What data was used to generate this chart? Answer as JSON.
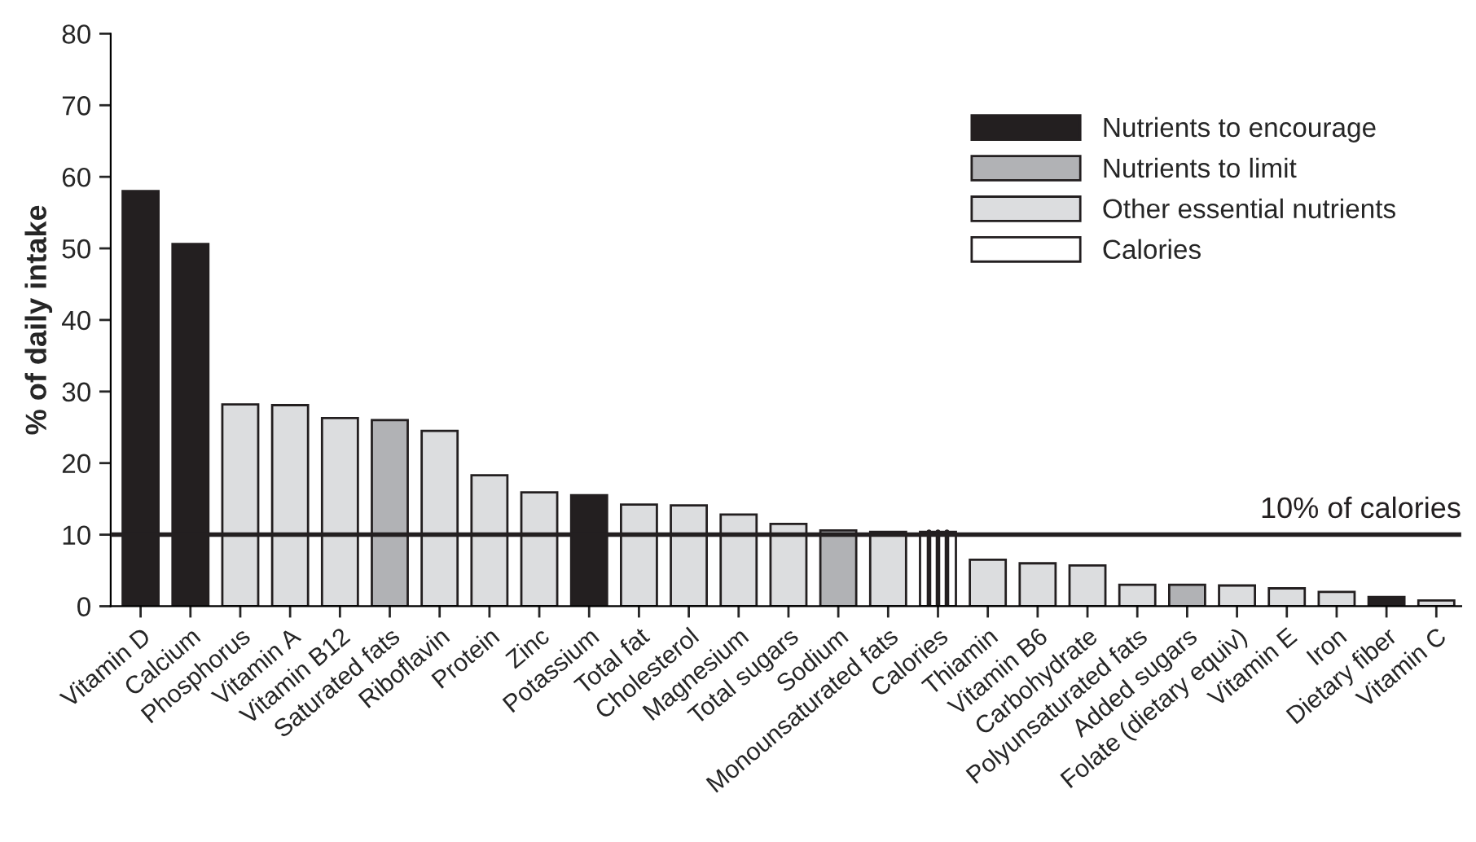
{
  "chart_data": {
    "type": "bar",
    "ylabel": "% of daily intake",
    "categories": [
      "Vitamin D",
      "Calcium",
      "Phosphorus",
      "Vitamin A",
      "Vitamin B12",
      "Saturated fats",
      "Riboflavin",
      "Protein",
      "Zinc",
      "Potassium",
      "Total fat",
      "Cholesterol",
      "Magnesium",
      "Total sugars",
      "Sodium",
      "Monounsaturated fats",
      "Calories",
      "Thiamin",
      "Vitamin B6",
      "Carbohydrate",
      "Polyunsaturated fats",
      "Added sugars",
      "Folate (dietary equiv)",
      "Vitamin E",
      "Iron",
      "Dietary fiber",
      "Vitamin C"
    ],
    "series": [
      {
        "name": "Nutrients to encourage",
        "color": "#231f20",
        "values": [
          58,
          50.6,
          null,
          null,
          null,
          null,
          null,
          null,
          null,
          15.5,
          null,
          null,
          null,
          null,
          null,
          null,
          null,
          null,
          null,
          null,
          null,
          null,
          null,
          null,
          null,
          1.3,
          null
        ]
      },
      {
        "name": "Nutrients to limit",
        "color": "#b1b2b5",
        "values": [
          null,
          null,
          null,
          null,
          null,
          26,
          null,
          null,
          null,
          null,
          null,
          null,
          null,
          null,
          10.6,
          null,
          null,
          null,
          null,
          null,
          null,
          3,
          null,
          null,
          null,
          null,
          null
        ]
      },
      {
        "name": "Other essential nutrients",
        "color": "#dcdddf",
        "values": [
          null,
          null,
          28.2,
          28.1,
          26.3,
          null,
          24.5,
          18.3,
          15.9,
          null,
          14.2,
          14.1,
          12.8,
          11.5,
          null,
          10.4,
          null,
          6.5,
          6,
          5.7,
          3,
          null,
          2.9,
          2.5,
          2,
          null,
          0.8
        ]
      },
      {
        "name": "Calories",
        "color": "#ffffff",
        "values": [
          null,
          null,
          null,
          null,
          null,
          null,
          null,
          null,
          null,
          null,
          null,
          null,
          null,
          null,
          null,
          null,
          10.4,
          null,
          null,
          null,
          null,
          null,
          null,
          null,
          null,
          null,
          null
        ]
      }
    ],
    "ylim": [
      0,
      80
    ],
    "yticks": [
      0,
      10,
      20,
      30,
      40,
      50,
      60,
      70,
      80
    ],
    "ref_lines": [
      {
        "axis": "y",
        "value": 10,
        "label": "10% of calories",
        "color": "#231f20"
      }
    ],
    "legend": "top right",
    "grid": false
  }
}
